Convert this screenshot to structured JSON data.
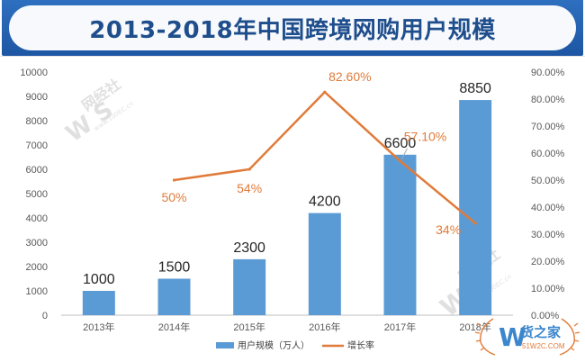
{
  "chart_data": {
    "type": "bar",
    "title": "2013-2018年中国跨境网购用户规模",
    "categories": [
      "2013年",
      "2014年",
      "2015年",
      "2016年",
      "2017年",
      "2018年"
    ],
    "series": [
      {
        "name": "用户规模（万人）",
        "type": "bar",
        "axis": "left",
        "color": "#5b9bd5",
        "values": [
          1000,
          1500,
          2300,
          4200,
          6600,
          8850
        ],
        "labels": [
          "1000",
          "1500",
          "2300",
          "4200",
          "6600",
          "8850"
        ]
      },
      {
        "name": "增长率",
        "type": "line",
        "axis": "right",
        "color": "#e07b39",
        "values": [
          null,
          50,
          54,
          82.6,
          57.1,
          34
        ],
        "labels": [
          "",
          "50%",
          "54%",
          "82.60%",
          "57.10%",
          "34%"
        ]
      }
    ],
    "y_left": {
      "min": 0,
      "max": 10000,
      "step": 1000,
      "ticks": [
        "0",
        "1000",
        "2000",
        "3000",
        "4000",
        "5000",
        "6000",
        "7000",
        "8000",
        "9000",
        "10000"
      ]
    },
    "y_right": {
      "min": 0,
      "max": 90,
      "step": 10,
      "ticks": [
        "0.00%",
        "10.00%",
        "20.00%",
        "30.00%",
        "40.00%",
        "50.00%",
        "60.00%",
        "70.00%",
        "80.00%",
        "90.00%"
      ]
    },
    "grid": false,
    "legend_position": "bottom"
  },
  "watermark": {
    "brand": "网经社",
    "letters": "W S",
    "url": "www.100EC.cn"
  },
  "corner_logo": {
    "brand": "货之家",
    "url": "51W2C.COM",
    "letter": "W"
  }
}
